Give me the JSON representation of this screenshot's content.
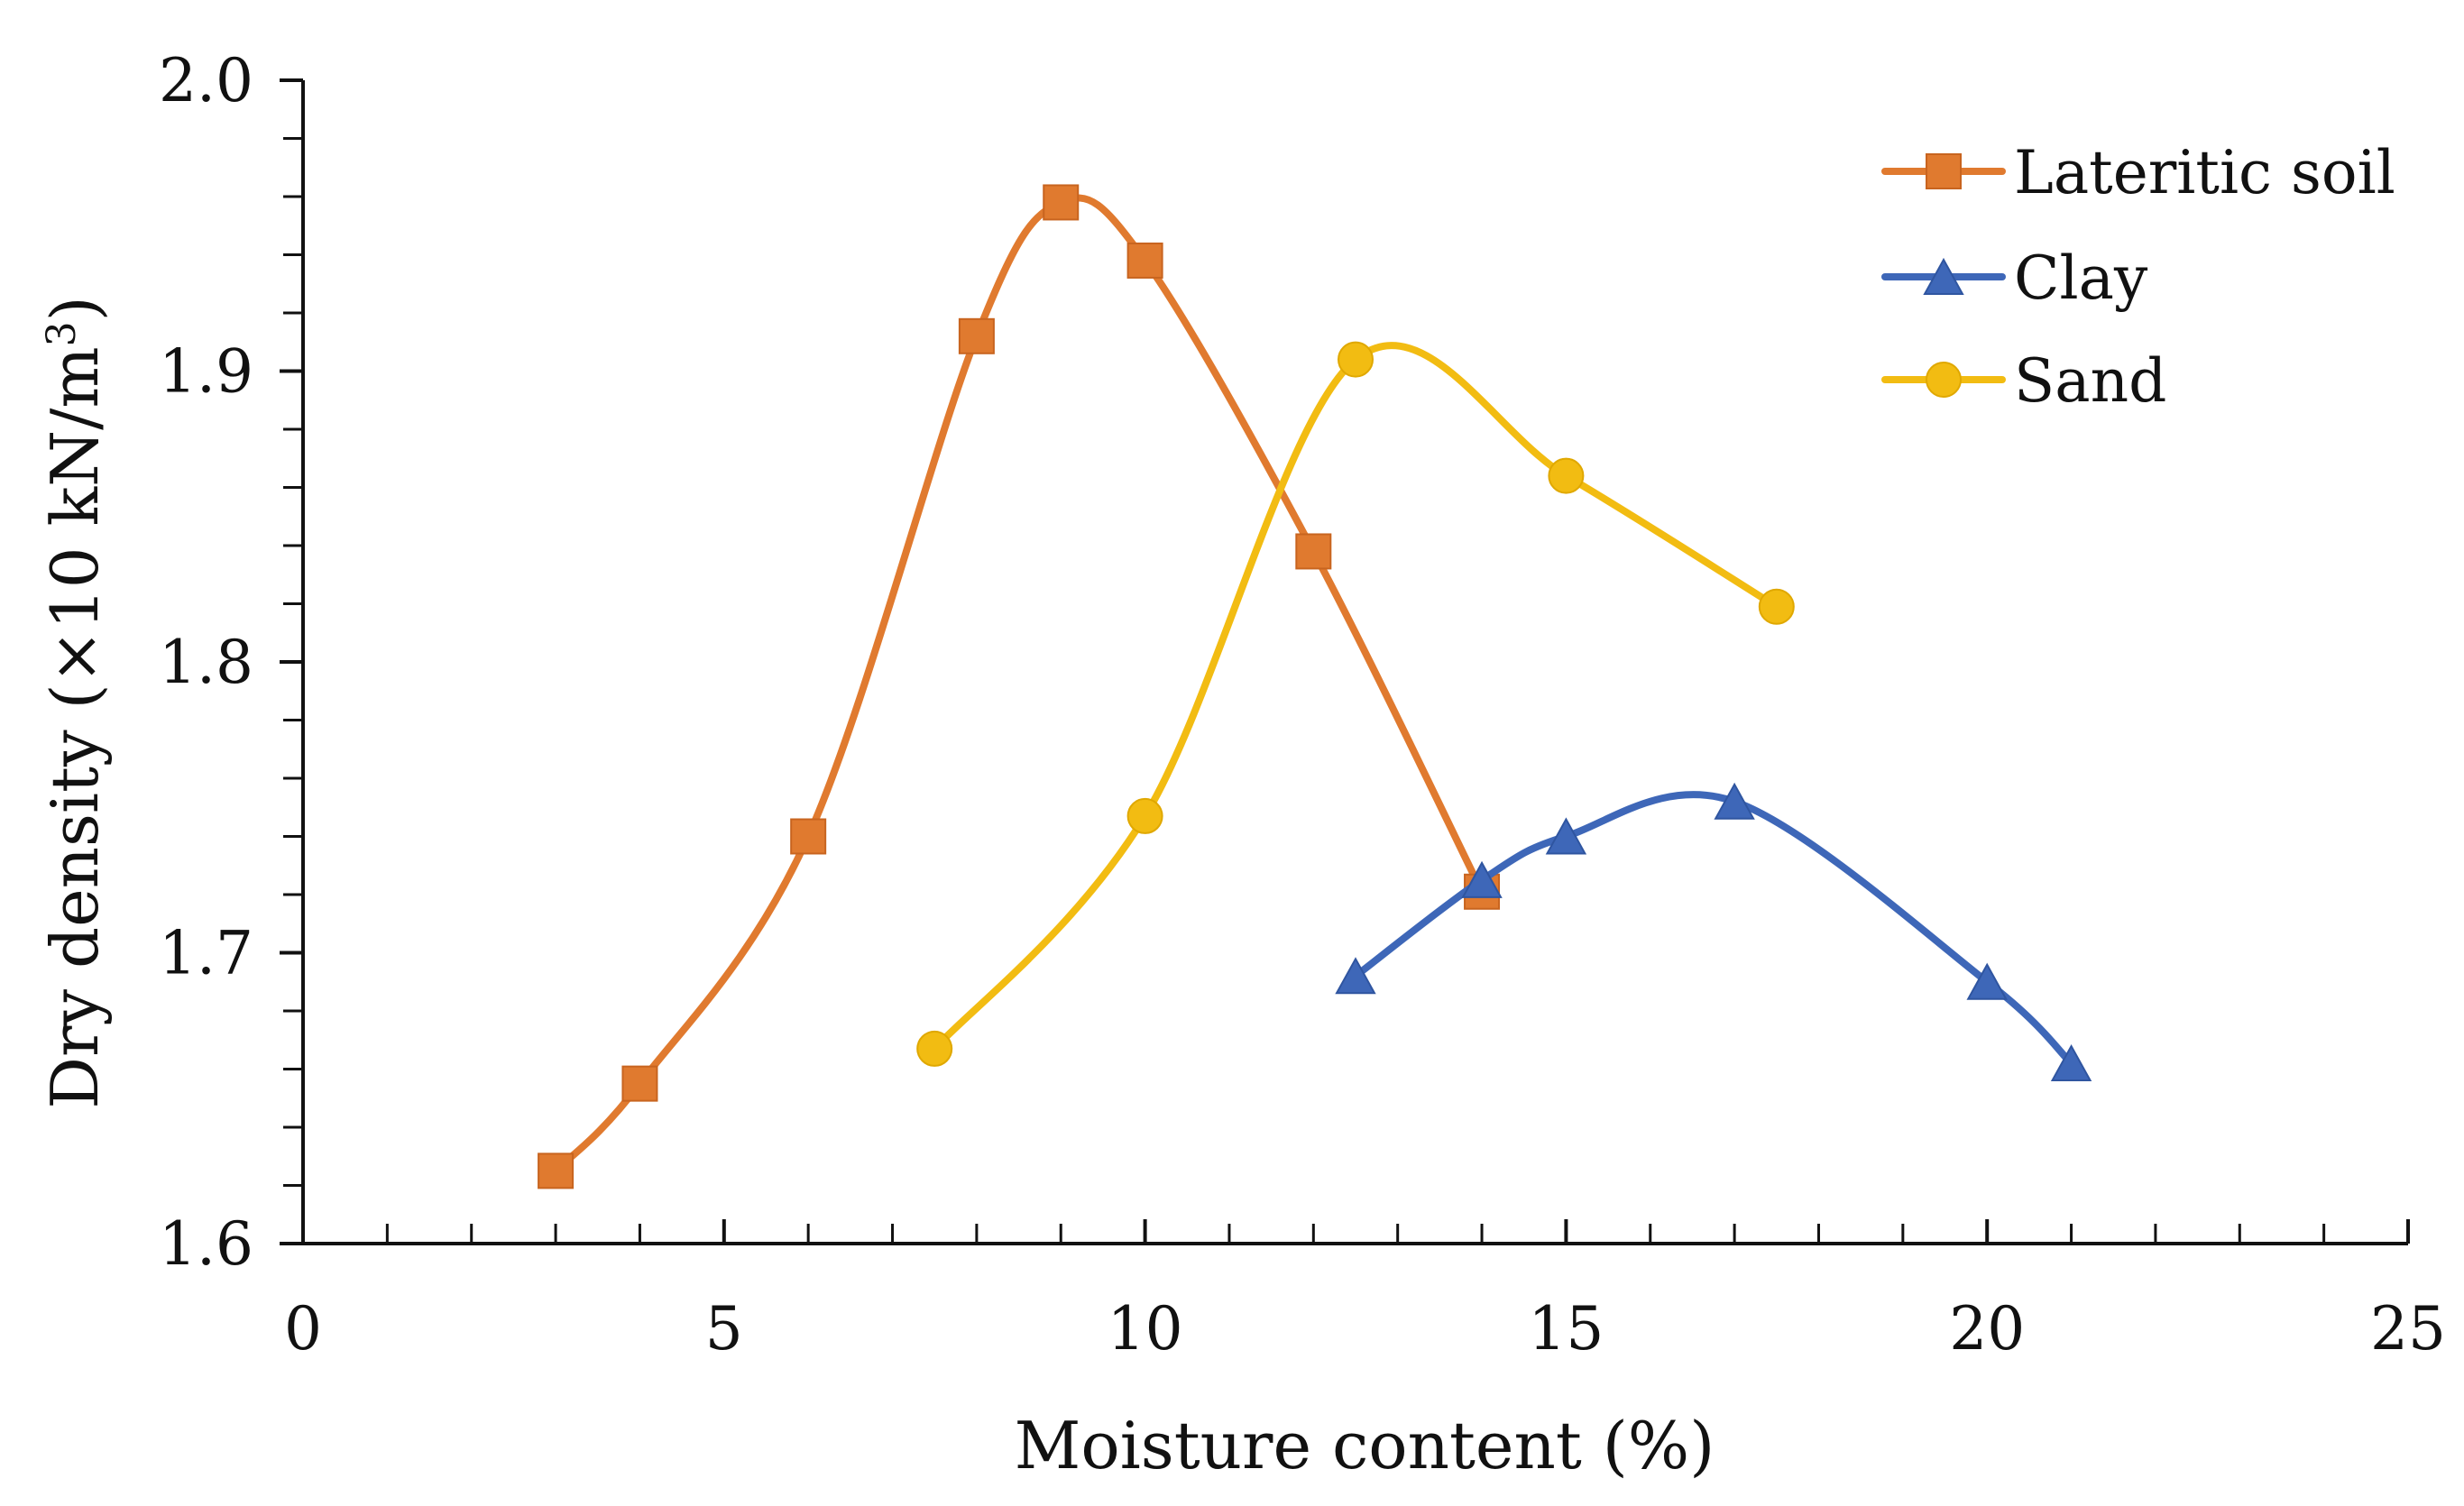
{
  "chart_data": {
    "type": "line",
    "title": "",
    "xlabel": "Moisture content (%)",
    "ylabel": "Dry density (×10 kN/m",
    "ylabel_superscript": "3",
    "ylabel_suffix": ")",
    "xlim": [
      0,
      25
    ],
    "ylim": [
      1.6,
      2.0
    ],
    "x_major_ticks": [
      0,
      5,
      10,
      15,
      20,
      25
    ],
    "x_minor_step": 1,
    "y_major_ticks": [
      1.6,
      1.7,
      1.8,
      1.9,
      2.0
    ],
    "y_minor_step": 0.02,
    "x_tick_labels": [
      "0",
      "5",
      "10",
      "15",
      "20",
      "25"
    ],
    "y_tick_labels": [
      "1.6",
      "1.7",
      "1.8",
      "1.9",
      "2.0"
    ],
    "grid": false,
    "legend_position": "top-right",
    "series": [
      {
        "name": "Lateritic soil",
        "color": "#E07A2F",
        "marker": "square",
        "x": [
          3,
          4,
          6,
          8,
          9,
          10,
          12,
          14
        ],
        "y": [
          1.625,
          1.655,
          1.74,
          1.912,
          1.958,
          1.938,
          1.838,
          1.721
        ]
      },
      {
        "name": "Clay",
        "color": "#3E67B8",
        "marker": "triangle",
        "x": [
          12.5,
          14,
          15,
          17,
          20,
          21
        ],
        "y": [
          1.692,
          1.725,
          1.74,
          1.752,
          1.69,
          1.662
        ]
      },
      {
        "name": "Sand",
        "color": "#F2BC12",
        "marker": "circle",
        "x": [
          7.5,
          10,
          12.5,
          15,
          17.5
        ],
        "y": [
          1.667,
          1.747,
          1.904,
          1.864,
          1.819
        ]
      }
    ]
  }
}
